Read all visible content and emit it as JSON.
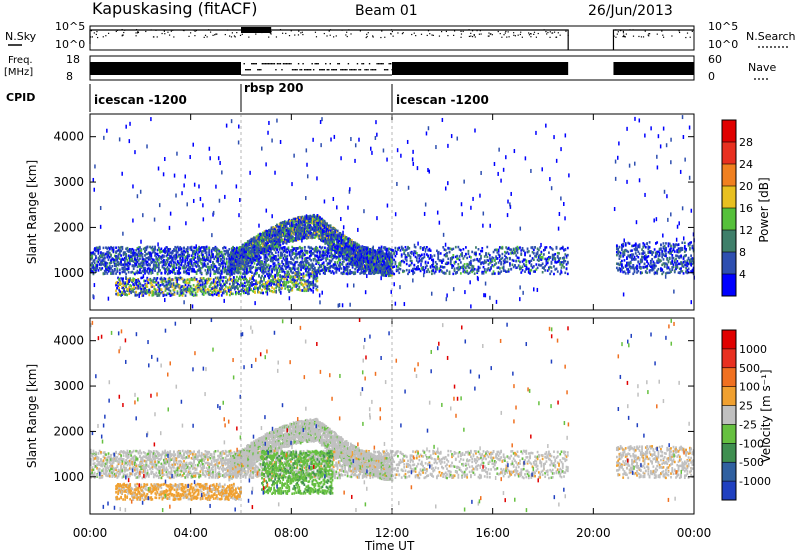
{
  "header": {
    "station": "Kapuskasing (fitACF)",
    "beam": "Beam 01",
    "date": "26/Jun/2013"
  },
  "status_panels": {
    "nsky_label": "N.Sky",
    "nsky_ticks": [
      "10^5",
      "10^0"
    ],
    "nsearch_label": "N.Search",
    "nsearch_ticks": [
      "10^5",
      "10^0"
    ],
    "freq_label": "Freq.",
    "freq_unit": "[MHz]",
    "freq_ticks": [
      "18",
      "8"
    ],
    "nave_label": "Nave",
    "nave_ticks": [
      "60",
      "0"
    ],
    "cpid_label": "CPID",
    "cpid_segments": [
      {
        "label": "icescan -1200",
        "start_hr": 0,
        "end_hr": 6
      },
      {
        "label": "rbsp 200",
        "start_hr": 6,
        "end_hr": 12
      },
      {
        "label": "icescan -1200",
        "start_hr": 12,
        "end_hr": 24
      }
    ]
  },
  "chart_data": [
    {
      "type": "heatmap",
      "name": "power",
      "ylabel": "Slant Range [km]",
      "xlabel": "Time UT",
      "x_ticks": [
        "00:00",
        "04:00",
        "08:00",
        "12:00",
        "16:00",
        "20:00",
        "00:00"
      ],
      "xlim_hours": [
        0,
        24
      ],
      "y_ticks": [
        1000,
        2000,
        3000,
        4000
      ],
      "ylim": [
        180,
        4500
      ],
      "colorbar_label": "Power [dB]",
      "colorbar_ticks": [
        "4",
        "8",
        "12",
        "16",
        "20",
        "24",
        "28"
      ],
      "colorbar_colors": [
        "#0000ff",
        "#2e4fb0",
        "#3f7f6a",
        "#55c03a",
        "#e8c020",
        "#f08020",
        "#e83020",
        "#e00000"
      ],
      "data_gaps_hours": [
        [
          19.0,
          20.8
        ]
      ],
      "features": [
        {
          "desc": "main arc",
          "start_hr": 5.5,
          "peak_hr": 9.0,
          "end_hr": 12.0,
          "range_start_km": 1300,
          "range_peak_km": 2150,
          "range_end_km": 1300
        },
        {
          "desc": "lower band",
          "start_hr": 0,
          "end_hr": 19.0,
          "range_km": 1200
        },
        {
          "desc": "near-range band",
          "start_hr": 1.0,
          "end_hr": 9.0,
          "range_km": 650
        }
      ]
    },
    {
      "type": "heatmap",
      "name": "velocity",
      "ylabel": "Slant Range [km]",
      "xlabel": "Time UT",
      "x_ticks": [
        "00:00",
        "04:00",
        "08:00",
        "12:00",
        "16:00",
        "20:00",
        "00:00"
      ],
      "xlim_hours": [
        0,
        24
      ],
      "y_ticks": [
        1000,
        2000,
        3000,
        4000
      ],
      "ylim": [
        180,
        4500
      ],
      "colorbar_label": "Velocity [m s⁻¹]",
      "colorbar_ticks": [
        "1000",
        "500",
        "100",
        "25",
        "-25",
        "-100",
        "-500",
        "-1000"
      ],
      "colorbar_colors": [
        "#2040c0",
        "#3060a0",
        "#3f8f50",
        "#66c040",
        "#c0c0c0",
        "#f0a030",
        "#f07020",
        "#e83020",
        "#e00000"
      ],
      "data_gaps_hours": [
        [
          19.0,
          20.8
        ]
      ]
    }
  ],
  "x_axis_title": "Time UT"
}
